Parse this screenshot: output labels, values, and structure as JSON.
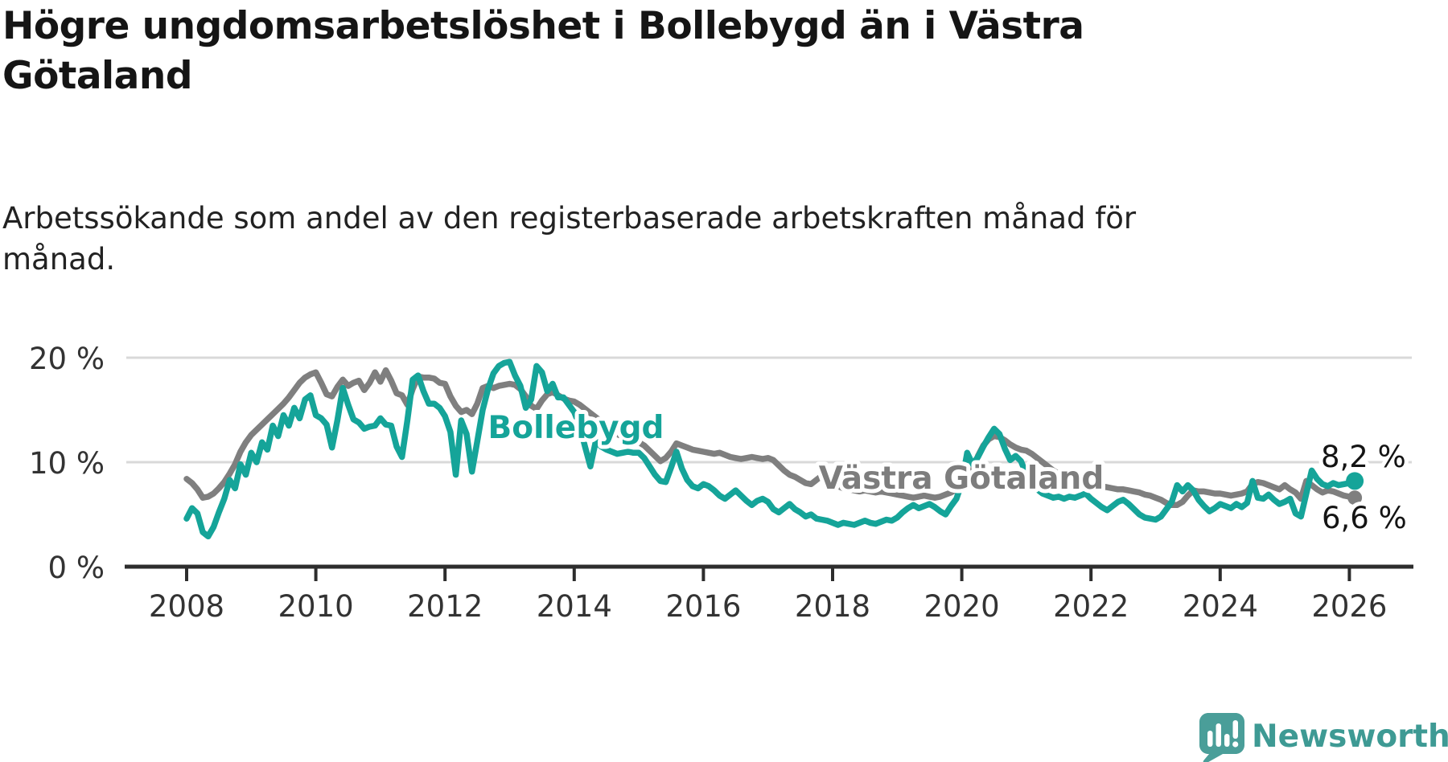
{
  "chart_data": {
    "type": "line",
    "title": "Högre ungdomsarbetslöshet i Bollebygd än i Västra Götaland",
    "subtitle": "Arbetssökande som andel av den registerbaserade arbetskraften månad för månad.",
    "y_unit": "%",
    "x_range": {
      "start": "2008-01",
      "end": "2026-02",
      "points_per_year": 12
    },
    "x_ticks": [
      "2008",
      "2010",
      "2012",
      "2014",
      "2016",
      "2018",
      "2020",
      "2022",
      "2024",
      "2026"
    ],
    "y_ticks": [
      {
        "value": 0,
        "label": "0 %"
      },
      {
        "value": 10,
        "label": "10 %"
      },
      {
        "value": 20,
        "label": "20 %"
      }
    ],
    "ylim": [
      0,
      20.5
    ],
    "grid": "horizontal",
    "legend_position": "inline-labels",
    "series": [
      {
        "name": "Västra Götaland",
        "color": "#7f7f7f",
        "end_value": 6.6,
        "end_label": "6,6 %",
        "values": [
          8.4,
          8.0,
          7.4,
          6.6,
          6.7,
          7.0,
          7.5,
          8.1,
          8.9,
          9.8,
          11.0,
          11.9,
          12.6,
          13.1,
          13.6,
          14.1,
          14.6,
          15.1,
          15.6,
          16.2,
          16.9,
          17.6,
          18.1,
          18.4,
          18.6,
          17.6,
          16.5,
          16.3,
          17.2,
          17.9,
          17.3,
          17.6,
          17.8,
          16.9,
          17.6,
          18.6,
          17.7,
          18.8,
          17.8,
          16.6,
          16.4,
          15.5,
          17.0,
          18.2,
          18.1,
          18.1,
          18.0,
          17.6,
          17.5,
          16.3,
          15.4,
          14.8,
          15.0,
          14.6,
          15.6,
          17.1,
          17.3,
          17.1,
          17.3,
          17.4,
          17.5,
          17.4,
          17.0,
          16.3,
          15.4,
          15.1,
          15.9,
          16.5,
          16.7,
          16.4,
          16.1,
          15.9,
          15.8,
          15.5,
          15.1,
          14.7,
          14.3,
          13.9,
          13.5,
          13.1,
          12.7,
          12.4,
          12.2,
          12.0,
          11.9,
          11.6,
          11.1,
          10.6,
          10.1,
          10.4,
          11.0,
          11.8,
          11.6,
          11.4,
          11.2,
          11.1,
          11.0,
          10.9,
          10.8,
          10.9,
          10.7,
          10.5,
          10.4,
          10.3,
          10.4,
          10.5,
          10.4,
          10.3,
          10.4,
          10.2,
          9.7,
          9.2,
          8.8,
          8.6,
          8.3,
          8.0,
          7.9,
          8.3,
          8.7,
          8.4,
          8.0,
          7.7,
          7.5,
          7.4,
          7.3,
          7.2,
          7.3,
          7.2,
          7.1,
          7.2,
          7.1,
          7.0,
          6.9,
          6.8,
          6.7,
          6.6,
          6.7,
          6.8,
          6.7,
          6.6,
          6.7,
          6.9,
          7.1,
          7.4,
          7.8,
          8.3,
          9.2,
          10.6,
          11.6,
          12.2,
          12.5,
          12.4,
          12.1,
          11.7,
          11.4,
          11.2,
          11.1,
          10.8,
          10.4,
          10.0,
          9.6,
          9.2,
          8.9,
          8.6,
          8.3,
          8.1,
          7.9,
          7.8,
          7.7,
          7.8,
          7.7,
          7.6,
          7.5,
          7.4,
          7.4,
          7.3,
          7.2,
          7.1,
          6.9,
          6.8,
          6.6,
          6.4,
          6.1,
          5.9,
          5.9,
          6.2,
          6.8,
          7.3,
          7.2,
          7.2,
          7.1,
          7.0,
          7.0,
          6.9,
          6.8,
          6.9,
          7.0,
          7.2,
          7.9,
          8.1,
          8.0,
          7.8,
          7.6,
          7.4,
          7.8,
          7.4,
          7.1,
          6.5,
          8.2,
          7.8,
          7.4,
          7.1,
          7.3,
          7.2,
          7.0,
          6.8,
          6.7,
          6.6
        ]
      },
      {
        "name": "Bollebygd",
        "color": "#15a499",
        "end_value": 8.2,
        "end_label": "8,2 %",
        "values": [
          4.6,
          5.6,
          5.1,
          3.3,
          2.9,
          3.8,
          5.2,
          6.5,
          8.3,
          7.5,
          9.8,
          8.8,
          10.9,
          10.0,
          11.9,
          11.2,
          13.5,
          12.5,
          14.5,
          13.5,
          15.2,
          14.2,
          16.0,
          16.4,
          14.5,
          14.2,
          13.6,
          11.4,
          14.0,
          17.1,
          15.5,
          14.1,
          13.8,
          13.2,
          13.4,
          13.5,
          14.2,
          13.6,
          13.5,
          11.5,
          10.5,
          14.0,
          17.9,
          18.3,
          16.8,
          15.6,
          15.6,
          15.2,
          14.4,
          12.9,
          8.8,
          14.0,
          12.7,
          9.1,
          12.0,
          15.0,
          17.0,
          18.5,
          19.2,
          19.5,
          19.6,
          18.3,
          17.3,
          15.2,
          16.0,
          19.2,
          18.6,
          16.8,
          17.5,
          16.2,
          16.2,
          15.5,
          14.8,
          13.5,
          11.5,
          9.6,
          12.0,
          11.5,
          11.2,
          11.0,
          10.8,
          10.9,
          11.0,
          10.9,
          10.9,
          10.4,
          9.6,
          8.8,
          8.2,
          8.1,
          9.5,
          11.0,
          9.4,
          8.3,
          7.7,
          7.5,
          7.9,
          7.7,
          7.3,
          6.8,
          6.5,
          6.9,
          7.3,
          6.8,
          6.3,
          5.9,
          6.3,
          6.5,
          6.2,
          5.5,
          5.2,
          5.6,
          6.0,
          5.5,
          5.2,
          4.8,
          5.0,
          4.6,
          4.5,
          4.4,
          4.2,
          4.0,
          4.2,
          4.1,
          4.0,
          4.2,
          4.4,
          4.2,
          4.1,
          4.3,
          4.5,
          4.4,
          4.7,
          5.2,
          5.6,
          5.9,
          5.6,
          5.8,
          6.0,
          5.7,
          5.3,
          5.0,
          5.8,
          6.5,
          8.0,
          10.9,
          9.8,
          10.5,
          11.5,
          12.4,
          13.2,
          12.7,
          11.3,
          10.2,
          10.6,
          10.1,
          8.8,
          8.0,
          7.4,
          7.0,
          6.8,
          6.6,
          6.7,
          6.5,
          6.7,
          6.6,
          6.8,
          7.0,
          6.5,
          6.1,
          5.7,
          5.4,
          5.8,
          6.2,
          6.4,
          6.0,
          5.5,
          5.0,
          4.7,
          4.6,
          4.5,
          4.8,
          5.5,
          6.2,
          7.8,
          7.2,
          7.8,
          7.3,
          6.4,
          5.8,
          5.3,
          5.6,
          6.0,
          5.8,
          5.6,
          6.0,
          5.7,
          6.1,
          8.2,
          6.6,
          6.5,
          6.9,
          6.4,
          6.0,
          6.2,
          6.5,
          5.1,
          4.8,
          7.0,
          9.2,
          8.4,
          7.9,
          7.7,
          8.0,
          7.8,
          7.9,
          8.0,
          8.2
        ]
      }
    ],
    "colors": {
      "grid": "#d9d9d9",
      "axis": "#2d2d2d",
      "tick_text": "#333333",
      "title_text": "#151515"
    }
  },
  "branding": {
    "logo_text": "Newsworthy",
    "logo_color": "#3e9a94",
    "icon": "newsworthy-speech-bubble-bar-chart-icon"
  }
}
